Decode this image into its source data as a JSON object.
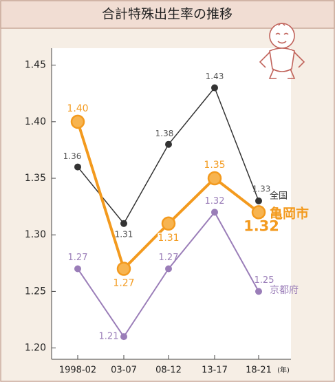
{
  "chart_data": {
    "type": "line",
    "title": "合計特殊出生率の推移",
    "categories": [
      "1998-02",
      "03-07",
      "08-12",
      "13-17",
      "18-21"
    ],
    "x_unit": "(年)",
    "ylim": [
      1.19,
      1.465
    ],
    "yticks": [
      {
        "value": 1.2,
        "label": "1.20"
      },
      1.25,
      {
        "value": 1.3,
        "label": "1.30"
      },
      1.35,
      {
        "value": 1.4,
        "label": "1.40"
      },
      1.45
    ],
    "series": [
      {
        "name": "全国",
        "color": "#333333",
        "values": [
          1.36,
          1.31,
          1.38,
          1.43,
          1.33
        ],
        "value_labels": [
          "1.36",
          "1.31",
          "1.38",
          "1.43",
          "1.33"
        ]
      },
      {
        "name": "亀岡市",
        "color": "#f39a1e",
        "values": [
          1.4,
          1.27,
          1.31,
          1.35,
          1.32
        ],
        "value_labels": [
          "1.40",
          "1.27",
          "1.31",
          "1.35",
          "1.32"
        ]
      },
      {
        "name": "京都府",
        "color": "#9a7db8",
        "values": [
          1.27,
          1.21,
          1.27,
          1.32,
          1.25
        ],
        "value_labels": [
          "1.27",
          "1.21",
          "1.27",
          "1.32",
          "1.25"
        ]
      }
    ]
  }
}
